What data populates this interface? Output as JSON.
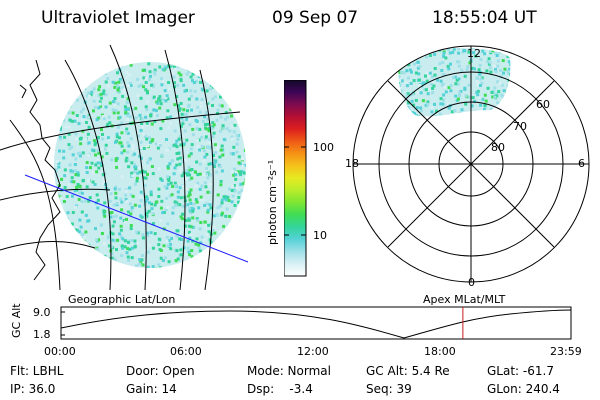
{
  "header": {
    "title": "Ultraviolet Imager",
    "date": "09 Sep 07",
    "time": "18:55:04 UT"
  },
  "colorbar": {
    "unit_label": "photon cm⁻²s⁻¹",
    "ticks": [
      "100",
      "10"
    ],
    "colors": [
      "#ffffff",
      "#d8f0f4",
      "#9fe0e8",
      "#55d2d6",
      "#34d49c",
      "#3fdd55",
      "#7ee634",
      "#b8ec2b",
      "#e6ea21",
      "#f5c11a",
      "#f59216",
      "#ef5a16",
      "#dc1f1f",
      "#b40f33",
      "#7e0b4f",
      "#3c0656",
      "#140828"
    ]
  },
  "panels": {
    "left_label": "Geographic Lat/Lon",
    "right_label": "Apex MLat/MLT"
  },
  "polar": {
    "mlt_labels": {
      "top": "12",
      "left": "18",
      "right": "6",
      "bottom": "0"
    },
    "mlat_labels": [
      "60",
      "70",
      "80"
    ]
  },
  "altitude_plot": {
    "ylabel": "GC Alt",
    "yticks": [
      "9.0",
      "1.8"
    ],
    "xticks": [
      "00:00",
      "06:00",
      "12:00",
      "18:00",
      "23:59"
    ],
    "current_time_fraction": 0.788
  },
  "info": {
    "row1": [
      "Flt: LBHL",
      "Door: Open",
      "Mode: Normal",
      "GC Alt: 5.4 Re",
      "GLat: -61.7"
    ],
    "row2": [
      "IP: 36.0",
      "Gain: 14",
      "Dsp:    -3.4",
      "Seq: 39",
      "GLon: 240.4"
    ]
  }
}
